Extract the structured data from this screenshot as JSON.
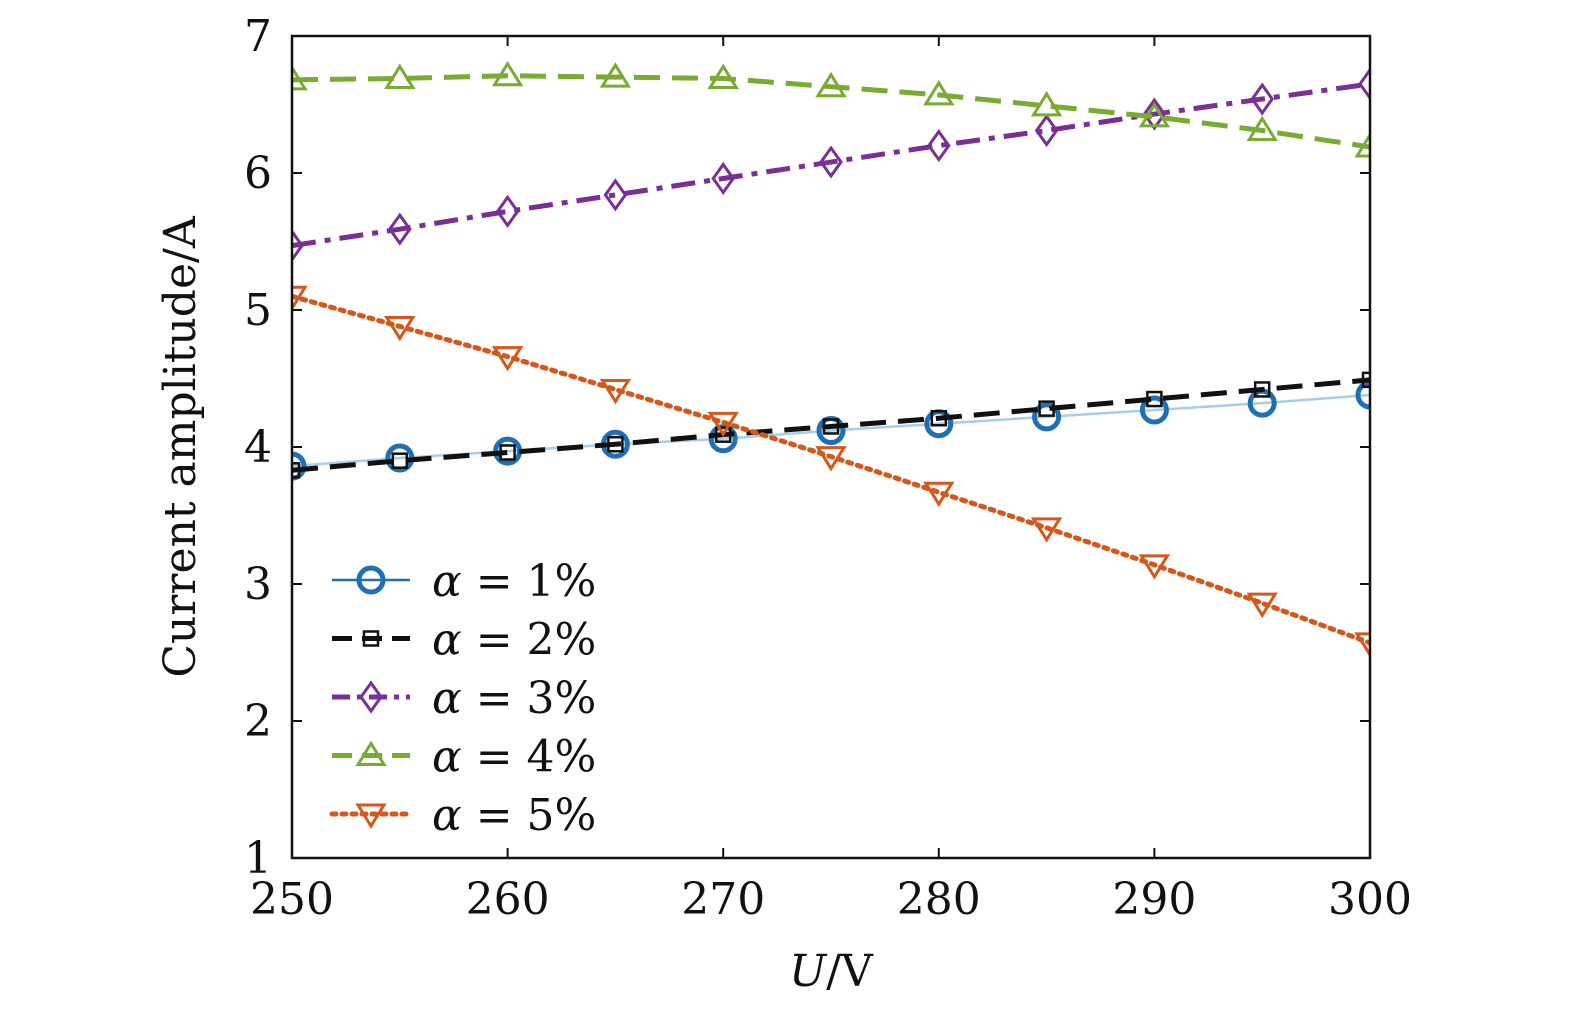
{
  "chart_data": {
    "type": "line",
    "xlabel_italic": "U",
    "xlabel_rest": "/V",
    "ylabel": "Current amplitude/A",
    "xlim": [
      250,
      300
    ],
    "ylim": [
      1,
      7
    ],
    "xticks": [
      250,
      260,
      270,
      280,
      290,
      300
    ],
    "yticks": [
      1,
      2,
      3,
      4,
      5,
      6,
      7
    ],
    "grid": false,
    "legend_position": "bottom-left",
    "x": [
      250,
      255,
      260,
      265,
      270,
      275,
      280,
      285,
      290,
      295,
      300
    ],
    "series": [
      {
        "name": "α = 1%",
        "symbol": "α",
        "name_rest": " = 1%",
        "color": "#1f6fb5",
        "line_color": "#a9cde4",
        "marker": "circle",
        "dash": "none",
        "values": [
          3.86,
          3.92,
          3.97,
          4.02,
          4.06,
          4.12,
          4.17,
          4.22,
          4.27,
          4.32,
          4.38
        ]
      },
      {
        "name": "α = 2%",
        "symbol": "α",
        "name_rest": " = 2%",
        "color": "#111111",
        "line_color": "#111111",
        "marker": "square",
        "dash": "dashed",
        "values": [
          3.83,
          3.9,
          3.96,
          4.02,
          4.09,
          4.15,
          4.21,
          4.28,
          4.35,
          4.42,
          4.49
        ]
      },
      {
        "name": "α = 3%",
        "symbol": "α",
        "name_rest": " = 3%",
        "color": "#7a2f96",
        "line_color": "#7a2f96",
        "marker": "diamond",
        "dash": "dashdot",
        "values": [
          5.47,
          5.59,
          5.72,
          5.84,
          5.96,
          6.08,
          6.2,
          6.31,
          6.43,
          6.54,
          6.65
        ]
      },
      {
        "name": "α = 4%",
        "symbol": "α",
        "name_rest": " = 4%",
        "color": "#77ab32",
        "line_color": "#77ab32",
        "marker": "triangle-up",
        "dash": "dashed",
        "values": [
          6.68,
          6.69,
          6.71,
          6.7,
          6.69,
          6.63,
          6.57,
          6.49,
          6.41,
          6.31,
          6.19
        ]
      },
      {
        "name": "α = 5%",
        "symbol": "α",
        "name_rest": " = 5%",
        "color": "#d4571b",
        "line_color": "#d4571b",
        "marker": "triangle-down",
        "dash": "dotted",
        "values": [
          5.1,
          4.88,
          4.66,
          4.42,
          4.18,
          3.93,
          3.67,
          3.41,
          3.14,
          2.86,
          2.57
        ]
      }
    ]
  }
}
